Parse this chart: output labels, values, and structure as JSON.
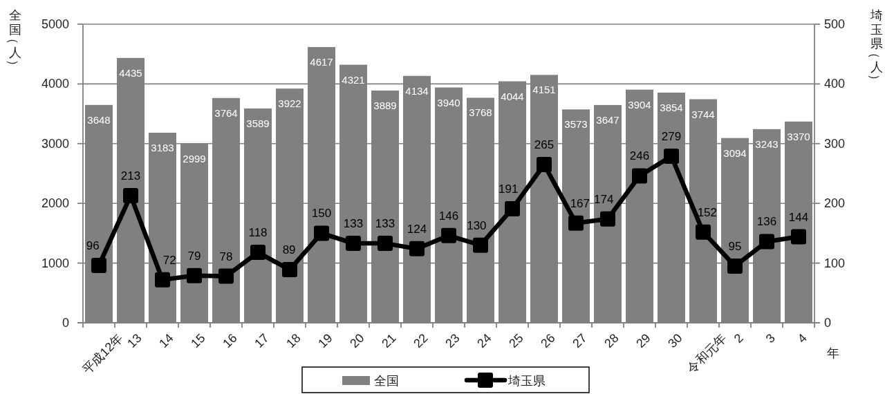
{
  "chart_data": {
    "type": "bar",
    "ylabel": "全国（人）",
    "y2label": "埼玉県（人）",
    "xlabel": "年",
    "categories": [
      "平成12年",
      "13",
      "14",
      "15",
      "16",
      "17",
      "18",
      "19",
      "20",
      "21",
      "22",
      "23",
      "24",
      "25",
      "26",
      "27",
      "28",
      "29",
      "30",
      "令和元年",
      "2",
      "3",
      "4"
    ],
    "series": [
      {
        "name": "全国",
        "color": "#808080",
        "values": [
          3648,
          4435,
          3183,
          2999,
          3764,
          3589,
          3922,
          4617,
          4321,
          3889,
          4134,
          3940,
          3768,
          4044,
          4151,
          3573,
          3647,
          3904,
          3854,
          3744,
          3094,
          3243,
          3370
        ]
      },
      {
        "name": "埼玉県",
        "type": "line",
        "axis": "y2",
        "color": "#000000",
        "values": [
          96,
          213,
          72,
          79,
          78,
          118,
          89,
          150,
          133,
          133,
          124,
          146,
          130,
          191,
          265,
          167,
          174,
          246,
          279,
          152,
          95,
          136,
          144
        ]
      }
    ],
    "ylim": [
      0,
      5000
    ],
    "yticks": [
      0,
      1000,
      2000,
      3000,
      4000,
      5000
    ],
    "y2lim": [
      0,
      500
    ],
    "y2ticks": [
      0,
      100,
      200,
      300,
      400,
      500
    ],
    "grid": "y",
    "legend": "bottom",
    "data_labels": true,
    "marker": "square"
  }
}
